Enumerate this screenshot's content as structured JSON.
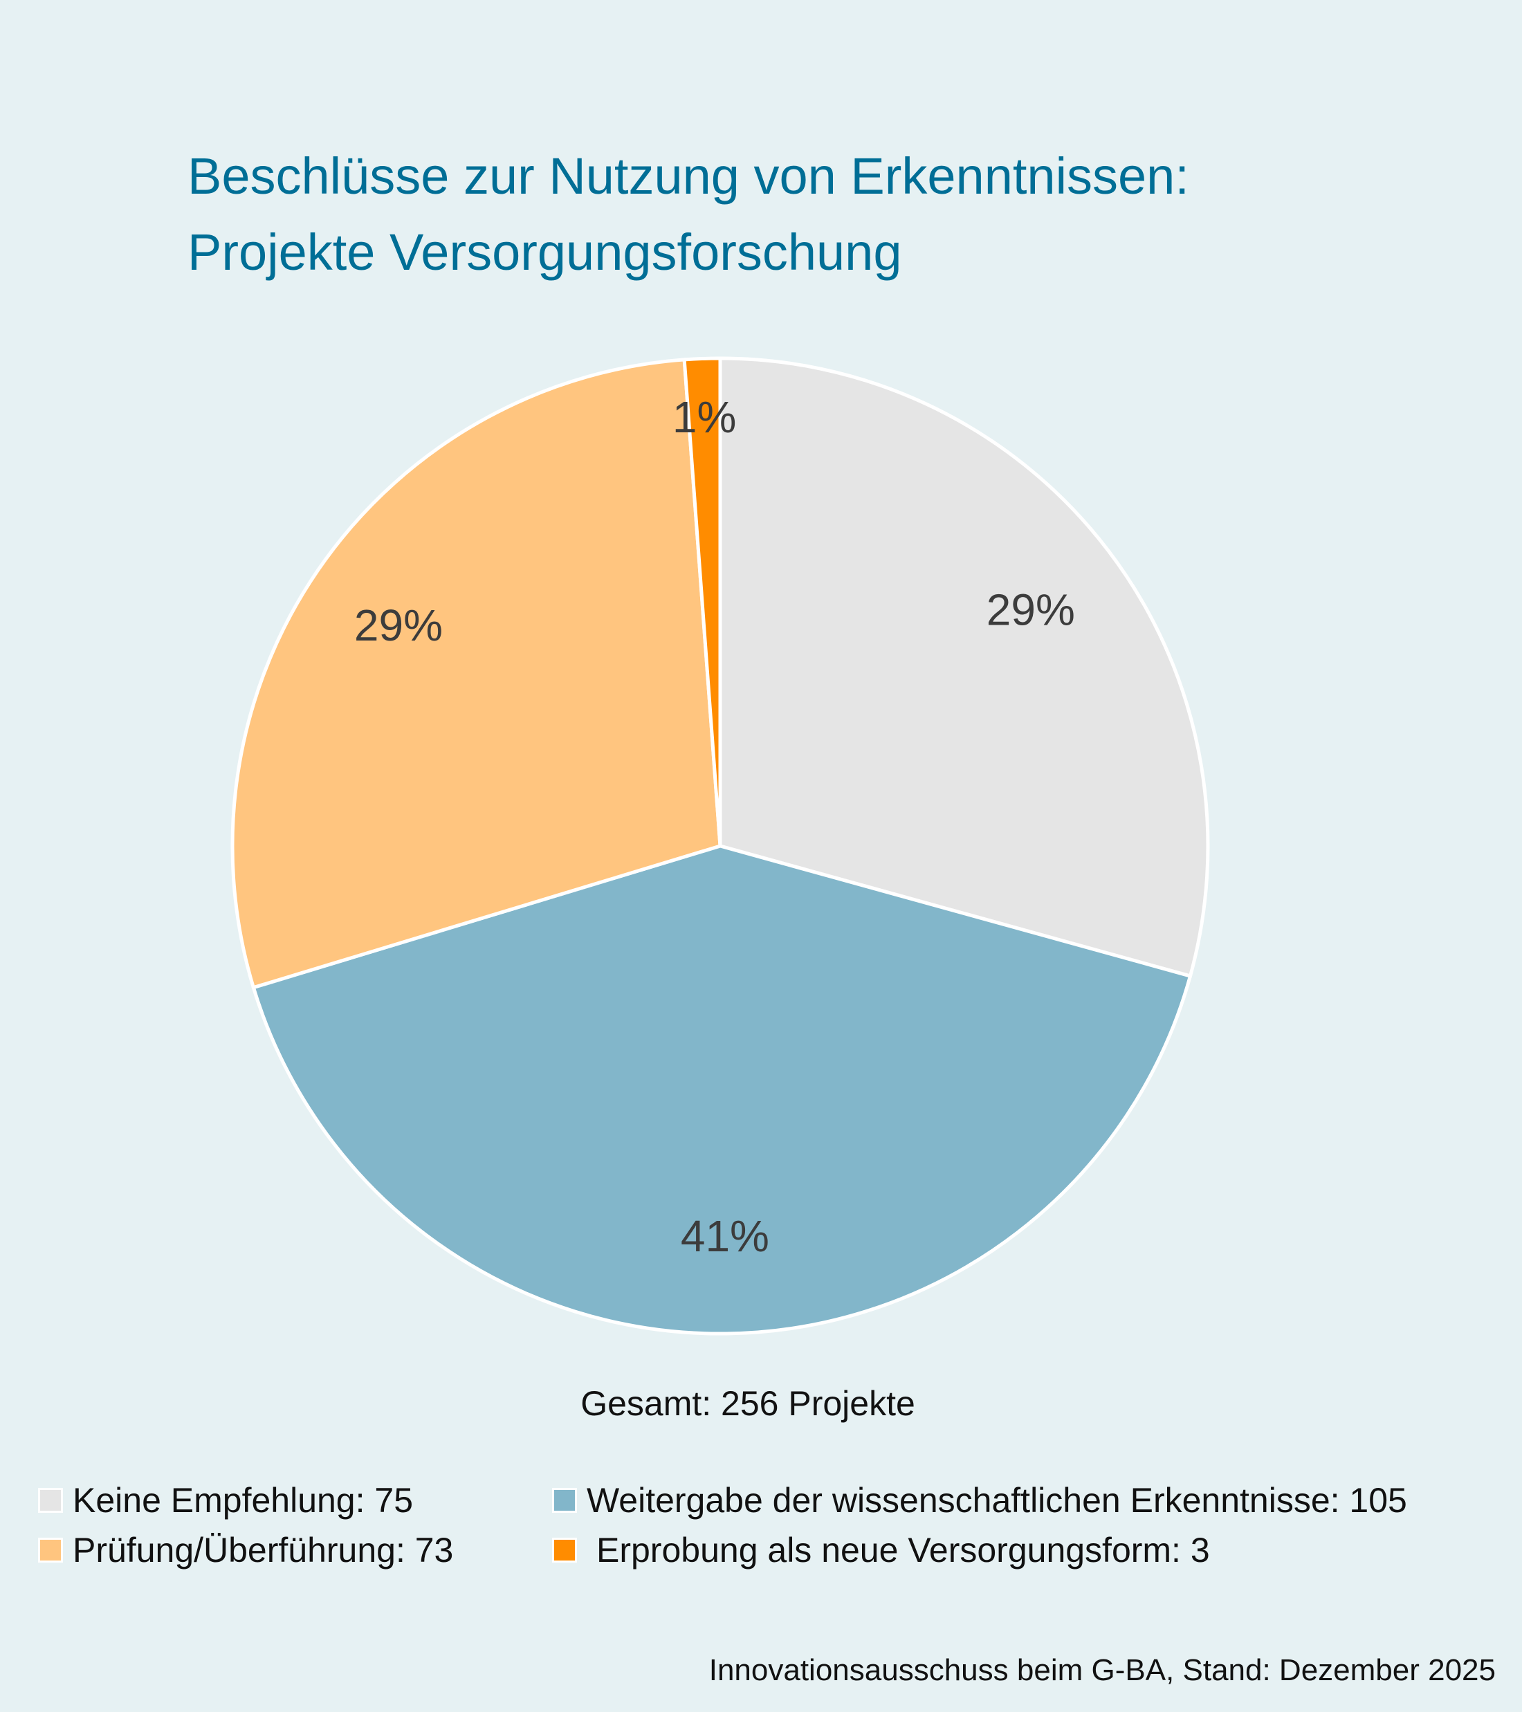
{
  "chart_data": {
    "type": "pie",
    "title": "Beschlüsse zur Nutzung von Erkenntnissen:",
    "subtitle": "Projekte Versorgungsforschung",
    "slices": [
      {
        "label": "Keine Empfehlung",
        "value": 75,
        "percent_label": "29%",
        "color": "#e5e5e5",
        "legend": "Keine Empfehlung: 75"
      },
      {
        "label": "Weitergabe der wissenschaftlichen Erkenntnisse",
        "value": 105,
        "percent_label": "41%",
        "color": "#82b6ca",
        "legend": "Weitergabe der wissenschaftlichen Erkenntnisse: 105"
      },
      {
        "label": "Prüfung/Überführung",
        "value": 73,
        "percent_label": "29%",
        "color": "#ffc57f",
        "legend": "Prüfung/Überführung: 73"
      },
      {
        "label": "Erprobung als neue Versorgungsform",
        "value": 3,
        "percent_label": "1%",
        "color": "#ff8c00",
        "legend": "Erprobung als neue Versorgungsform: 3"
      }
    ],
    "start_angle": "top",
    "direction": "clockwise",
    "total_label": "Gesamt: 256 Projekte",
    "legend_position": "bottom"
  },
  "footer": "Innovationsausschuss beim G-BA, Stand: Dezember 2025",
  "colors": {
    "background": "#e6f1f3",
    "title": "#006e96",
    "label": "#3c3c3c"
  }
}
